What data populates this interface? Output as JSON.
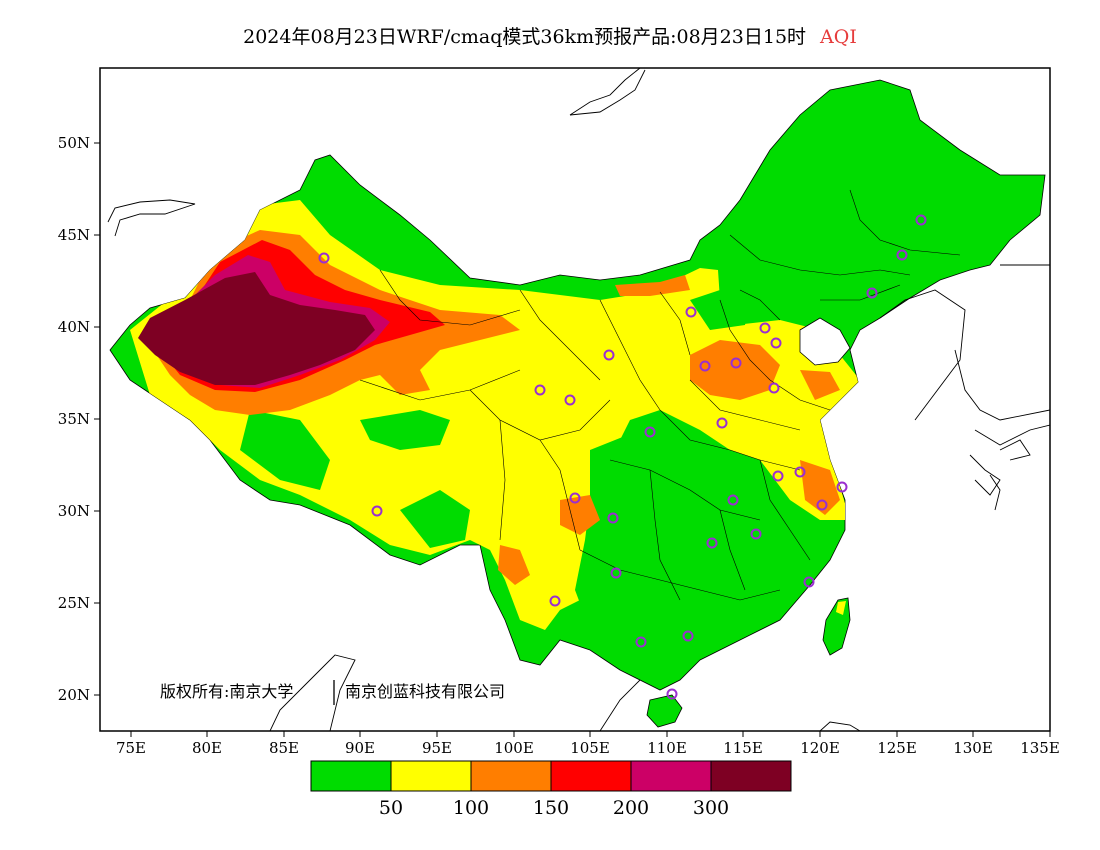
{
  "title": {
    "main": "2024年08月23日WRF/cmaq模式36km预报产品:08月23日15时",
    "variable": "AQI"
  },
  "map": {
    "lat_labels": [
      "50N",
      "45N",
      "40N",
      "35N",
      "30N",
      "25N",
      "20N"
    ],
    "lon_labels": [
      "75E",
      "80E",
      "85E",
      "90E",
      "95E",
      "100E",
      "105E",
      "110E",
      "115E",
      "120E",
      "125E",
      "130E",
      "135E"
    ],
    "copyright_left": "版权所有:南京大学",
    "copyright_right": "南京创蓝科技有限公司"
  },
  "colorbar": {
    "colors": [
      "#00dc00",
      "#ffff00",
      "#ff7e00",
      "#ff0000",
      "#cc0066",
      "#7e0023"
    ],
    "labels": [
      "50",
      "100",
      "150",
      "200",
      "300"
    ]
  },
  "stations": 26
}
